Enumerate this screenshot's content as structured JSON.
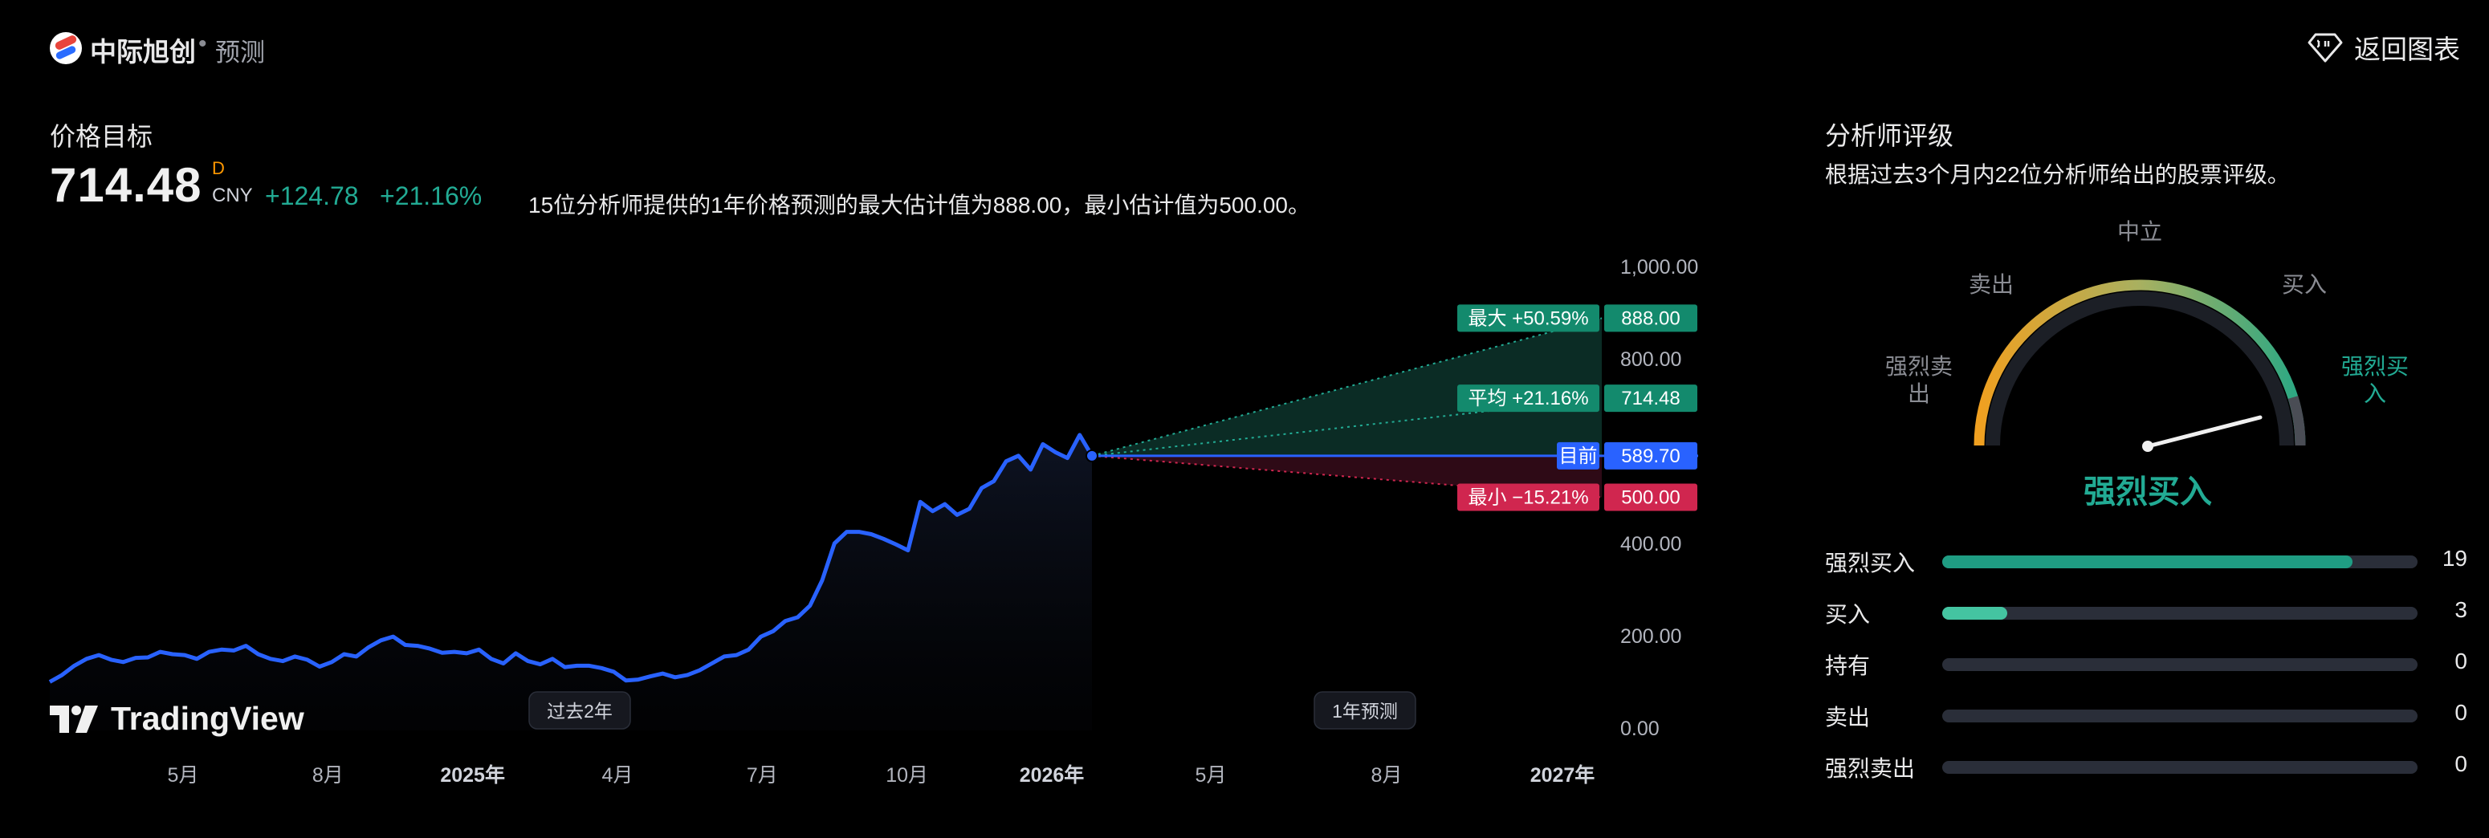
{
  "header": {
    "company": "中际旭创",
    "separator": "•",
    "section": "预测",
    "back_label": "返回图表"
  },
  "price_target": {
    "title": "价格目标",
    "price": "714.48",
    "flag": "D",
    "currency": "CNY",
    "change": "+124.78",
    "change_pct": "+21.16%",
    "description": "15位分析师提供的1年价格预测的最大估计值为888.00，最小估计值为500.00。"
  },
  "chart_data": {
    "type": "line",
    "y_ticks": [
      "1,000.00",
      "800.00",
      "400.00",
      "200.00",
      "0.00"
    ],
    "ylim": [
      0,
      1000
    ],
    "x_ticks": [
      {
        "label": "5月",
        "bold": false
      },
      {
        "label": "8月",
        "bold": false
      },
      {
        "label": "2025年",
        "bold": true
      },
      {
        "label": "4月",
        "bold": false
      },
      {
        "label": "7月",
        "bold": false
      },
      {
        "label": "10月",
        "bold": false
      },
      {
        "label": "2026年",
        "bold": true
      },
      {
        "label": "5月",
        "bold": false
      },
      {
        "label": "8月",
        "bold": false
      },
      {
        "label": "2027年",
        "bold": true
      }
    ],
    "history": [
      100,
      115,
      135,
      150,
      158,
      148,
      143,
      152,
      153,
      165,
      160,
      158,
      150,
      165,
      170,
      168,
      178,
      160,
      150,
      145,
      155,
      148,
      133,
      143,
      160,
      155,
      175,
      190,
      198,
      180,
      178,
      172,
      163,
      165,
      162,
      170,
      150,
      140,
      162,
      145,
      138,
      150,
      132,
      135,
      135,
      130,
      122,
      103,
      105,
      112,
      118,
      110,
      115,
      125,
      140,
      155,
      158,
      170,
      198,
      210,
      232,
      240,
      265,
      320,
      400,
      425,
      425,
      420,
      410,
      398,
      385,
      490,
      470,
      485,
      462,
      475,
      520,
      535,
      578,
      590,
      560,
      615,
      598,
      585,
      635,
      590
    ],
    "history_label": "过去2年",
    "forecast_label": "1年预测",
    "current": {
      "label": "目前",
      "value": "589.70",
      "color": "#2962ff"
    },
    "forecast": [
      {
        "label": "最大 +50.59%",
        "value": "888.00",
        "color": "#138a6d"
      },
      {
        "label": "平均 +21.16%",
        "value": "714.48",
        "color": "#138a6d"
      },
      {
        "label": "最小 −15.21%",
        "value": "500.00",
        "color": "#d0264f"
      }
    ],
    "line_color": "#2962ff"
  },
  "branding": {
    "tv_name": "TradingView"
  },
  "analyst_rating": {
    "title": "分析师评级",
    "description": "根据过去3个月内22位分析师给出的股票评级。",
    "gauge_labels": {
      "strong_sell": [
        "强烈卖",
        "出"
      ],
      "sell": "卖出",
      "neutral": "中立",
      "buy": "买入",
      "strong_buy": [
        "强烈买",
        "入"
      ]
    },
    "result": "强烈买入",
    "rows": [
      {
        "label": "强烈买入",
        "count": "19",
        "fraction": 0.864,
        "color": "#1f9d83"
      },
      {
        "label": "买入",
        "count": "3",
        "fraction": 0.136,
        "color": "#44c4a1"
      },
      {
        "label": "持有",
        "count": "0",
        "fraction": 0,
        "color": "#2a2e39"
      },
      {
        "label": "卖出",
        "count": "0",
        "fraction": 0,
        "color": "#2a2e39"
      },
      {
        "label": "强烈卖出",
        "count": "0",
        "fraction": 0,
        "color": "#2a2e39"
      }
    ]
  }
}
